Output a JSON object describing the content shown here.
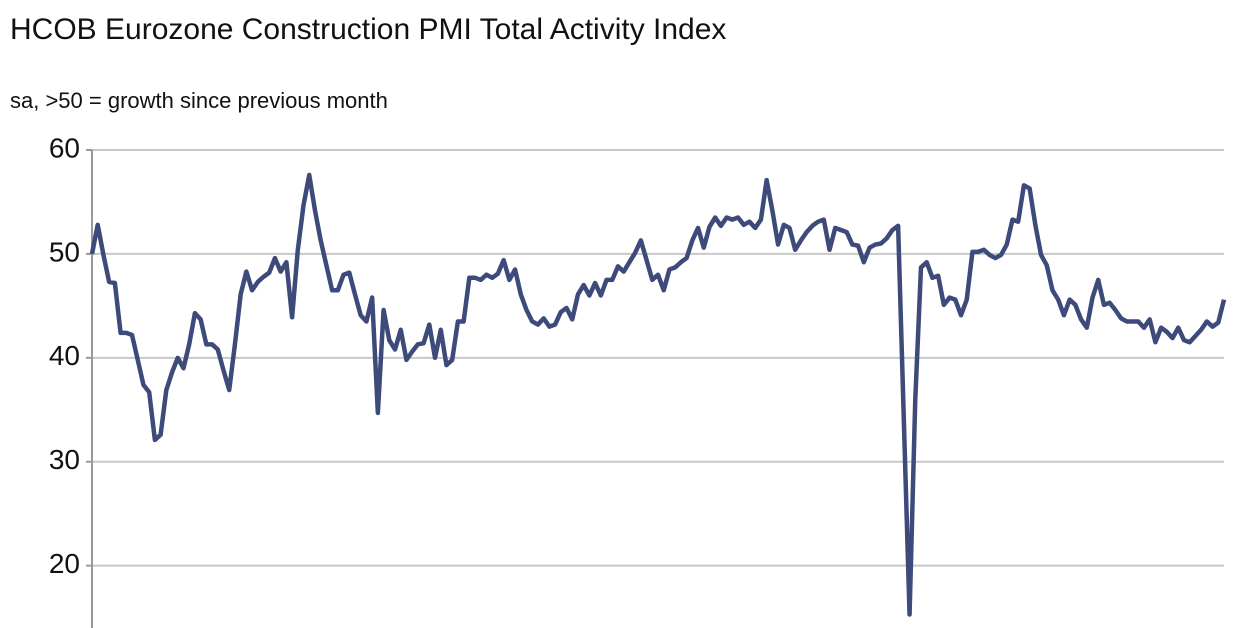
{
  "chart_data": {
    "type": "line",
    "title": "HCOB Eurozone Construction PMI Total Activity Index",
    "subtitle": "sa, >50 = growth  since previous  month",
    "color": "#3d4a7a",
    "grid": true,
    "ylim": [
      14,
      60
    ],
    "yticks": [
      20,
      30,
      40,
      50,
      60
    ],
    "values": [
      50.0,
      52.8,
      49.9,
      47.3,
      47.2,
      42.4,
      42.4,
      42.2,
      39.8,
      37.4,
      36.7,
      32.1,
      32.6,
      36.9,
      38.6,
      40.0,
      39.0,
      41.3,
      44.3,
      43.7,
      41.3,
      41.3,
      40.8,
      38.8,
      36.9,
      41.3,
      46.1,
      48.3,
      46.5,
      47.3,
      47.8,
      48.2,
      49.6,
      48.3,
      49.2,
      43.9,
      50.4,
      54.7,
      57.6,
      54.2,
      51.3,
      48.9,
      46.5,
      46.5,
      48.0,
      48.2,
      46.1,
      44.1,
      43.5,
      45.8,
      34.7,
      44.6,
      41.7,
      40.8,
      42.7,
      39.8,
      40.6,
      41.3,
      41.4,
      43.2,
      40.0,
      42.7,
      39.3,
      39.8,
      43.5,
      43.5,
      47.7,
      47.7,
      47.5,
      48.0,
      47.7,
      48.1,
      49.4,
      47.5,
      48.5,
      46.1,
      44.6,
      43.5,
      43.2,
      43.8,
      43.0,
      43.2,
      44.4,
      44.8,
      43.7,
      46.1,
      47.0,
      46.0,
      47.2,
      46.0,
      47.5,
      47.5,
      48.8,
      48.3,
      49.2,
      50.1,
      51.3,
      49.4,
      47.5,
      48.0,
      46.5,
      48.5,
      48.7,
      49.2,
      49.6,
      51.3,
      52.5,
      50.6,
      52.6,
      53.5,
      52.7,
      53.5,
      53.3,
      53.5,
      52.8,
      53.1,
      52.5,
      53.3,
      57.1,
      54.2,
      50.9,
      52.8,
      52.5,
      50.4,
      51.3,
      52.1,
      52.7,
      53.1,
      53.3,
      50.4,
      52.5,
      52.3,
      52.1,
      50.9,
      50.8,
      49.2,
      50.6,
      50.9,
      51.0,
      51.5,
      52.3,
      52.7,
      34.0,
      15.3,
      36.0,
      48.7,
      49.2,
      47.7,
      47.9,
      45.1,
      45.8,
      45.6,
      44.1,
      45.6,
      50.2,
      50.2,
      50.4,
      49.9,
      49.6,
      49.9,
      50.9,
      53.3,
      53.1,
      56.6,
      56.3,
      52.8,
      49.9,
      48.9,
      46.5,
      45.6,
      44.1,
      45.6,
      45.1,
      43.7,
      42.9,
      45.8,
      47.5,
      45.1,
      45.3,
      44.6,
      43.8,
      43.5,
      43.5,
      43.5,
      42.9,
      43.7,
      41.5,
      42.9,
      42.5,
      41.9,
      42.9,
      41.7,
      41.5,
      42.1,
      42.7,
      43.5,
      43.0,
      43.4,
      45.6
    ]
  }
}
